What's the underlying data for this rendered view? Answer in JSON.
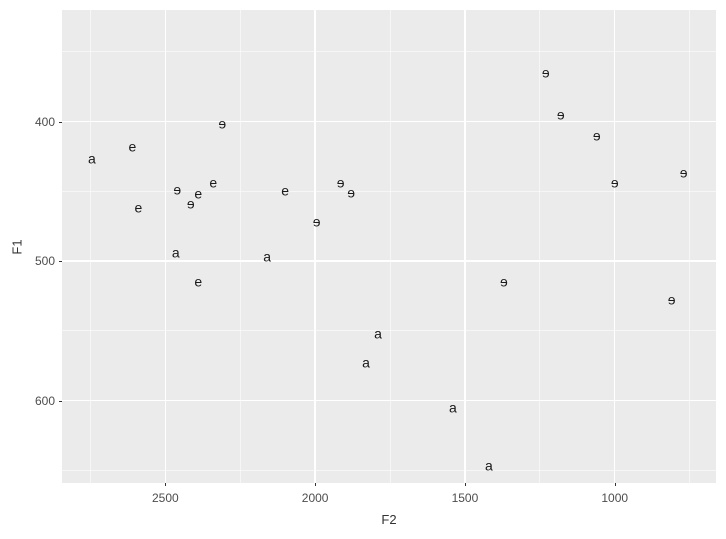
{
  "chart_data": {
    "type": "scatter",
    "title": "",
    "xlabel": "F2",
    "ylabel": "F1",
    "style": "ggplot2-grey-theme",
    "legend": "none",
    "grid": true,
    "x_axis_reversed": true,
    "y_axis_increases_downward": true,
    "xlim": [
      2845,
      662
    ],
    "ylim": [
      320,
      659
    ],
    "x_major_ticks": [
      2500,
      2000,
      1500,
      1000
    ],
    "x_minor_ticks": [
      2750,
      2250,
      1750,
      1250,
      750
    ],
    "y_major_ticks": [
      400,
      500,
      600
    ],
    "y_minor_ticks": [
      350,
      450,
      550,
      650
    ],
    "colors": {
      "panel_background": "#EBEBEB",
      "grid_major": "#FFFFFF",
      "grid_minor": "rgba(255,255,255,0.55)",
      "tick_mark": "#333333",
      "tick_label": "#4D4D4D",
      "axis_title": "#333333",
      "point_text": "#1A1A1A"
    },
    "points": [
      {
        "label": "a",
        "f2": 2745,
        "f1": 427
      },
      {
        "label": "e",
        "f2": 2610,
        "f1": 418
      },
      {
        "label": "e",
        "f2": 2590,
        "f1": 462
      },
      {
        "label": "ɘ",
        "f2": 2460,
        "f1": 449
      },
      {
        "label": "ɘ",
        "f2": 2415,
        "f1": 459
      },
      {
        "label": "e",
        "f2": 2390,
        "f1": 452
      },
      {
        "label": "e",
        "f2": 2340,
        "f1": 444
      },
      {
        "label": "ɘ",
        "f2": 2310,
        "f1": 402
      },
      {
        "label": "a",
        "f2": 2465,
        "f1": 494
      },
      {
        "label": "e",
        "f2": 2390,
        "f1": 515
      },
      {
        "label": "a",
        "f2": 2160,
        "f1": 497
      },
      {
        "label": "e",
        "f2": 2100,
        "f1": 450
      },
      {
        "label": "ɘ",
        "f2": 1995,
        "f1": 472
      },
      {
        "label": "ɘ",
        "f2": 1915,
        "f1": 444
      },
      {
        "label": "ɘ",
        "f2": 1880,
        "f1": 451
      },
      {
        "label": "a",
        "f2": 1790,
        "f1": 552
      },
      {
        "label": "a",
        "f2": 1830,
        "f1": 573
      },
      {
        "label": "a",
        "f2": 1540,
        "f1": 605
      },
      {
        "label": "a",
        "f2": 1420,
        "f1": 647
      },
      {
        "label": "ɘ",
        "f2": 1370,
        "f1": 515
      },
      {
        "label": "ɘ",
        "f2": 1230,
        "f1": 365
      },
      {
        "label": "ɘ",
        "f2": 1180,
        "f1": 395
      },
      {
        "label": "ɘ",
        "f2": 1060,
        "f1": 410
      },
      {
        "label": "ɘ",
        "f2": 1000,
        "f1": 444
      },
      {
        "label": "ɘ",
        "f2": 770,
        "f1": 437
      },
      {
        "label": "ɘ",
        "f2": 810,
        "f1": 528
      }
    ]
  }
}
